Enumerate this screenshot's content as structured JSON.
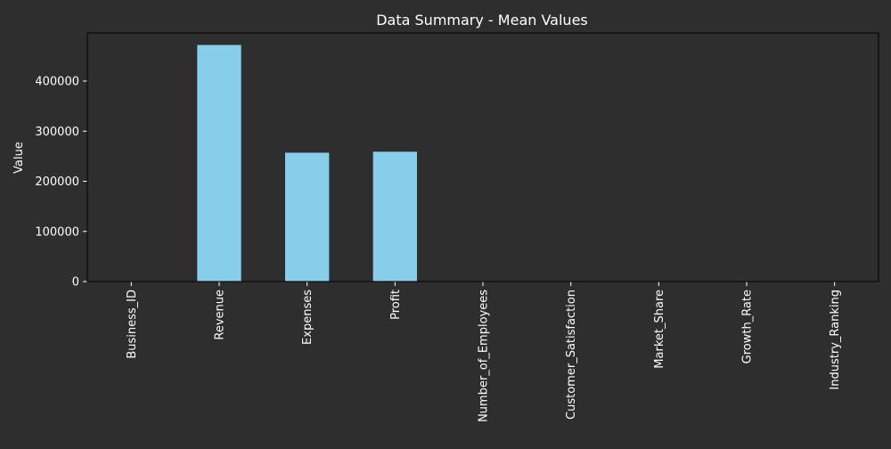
{
  "chart_data": {
    "type": "bar",
    "title": "Data Summary - Mean Values",
    "xlabel": "",
    "ylabel": "Value",
    "categories": [
      "Business_ID",
      "Revenue",
      "Expenses",
      "Profit",
      "Number_of_Employees",
      "Customer_Satisfaction",
      "Market_Share",
      "Growth_Rate",
      "Industry_Ranking"
    ],
    "values": [
      50.5,
      472000,
      257000,
      259000,
      250,
      3,
      0.5,
      0.05,
      50
    ],
    "ylim": [
      0,
      496000
    ],
    "yticks": [
      0,
      100000,
      200000,
      300000,
      400000
    ],
    "ytick_labels": [
      "0",
      "100000",
      "200000",
      "300000",
      "400000"
    ],
    "grid": false,
    "legend": "none",
    "colors": {
      "background": "#2e2e2e",
      "bar": "#87ceeb",
      "axis": "#000000",
      "text": "#ffffff"
    }
  }
}
